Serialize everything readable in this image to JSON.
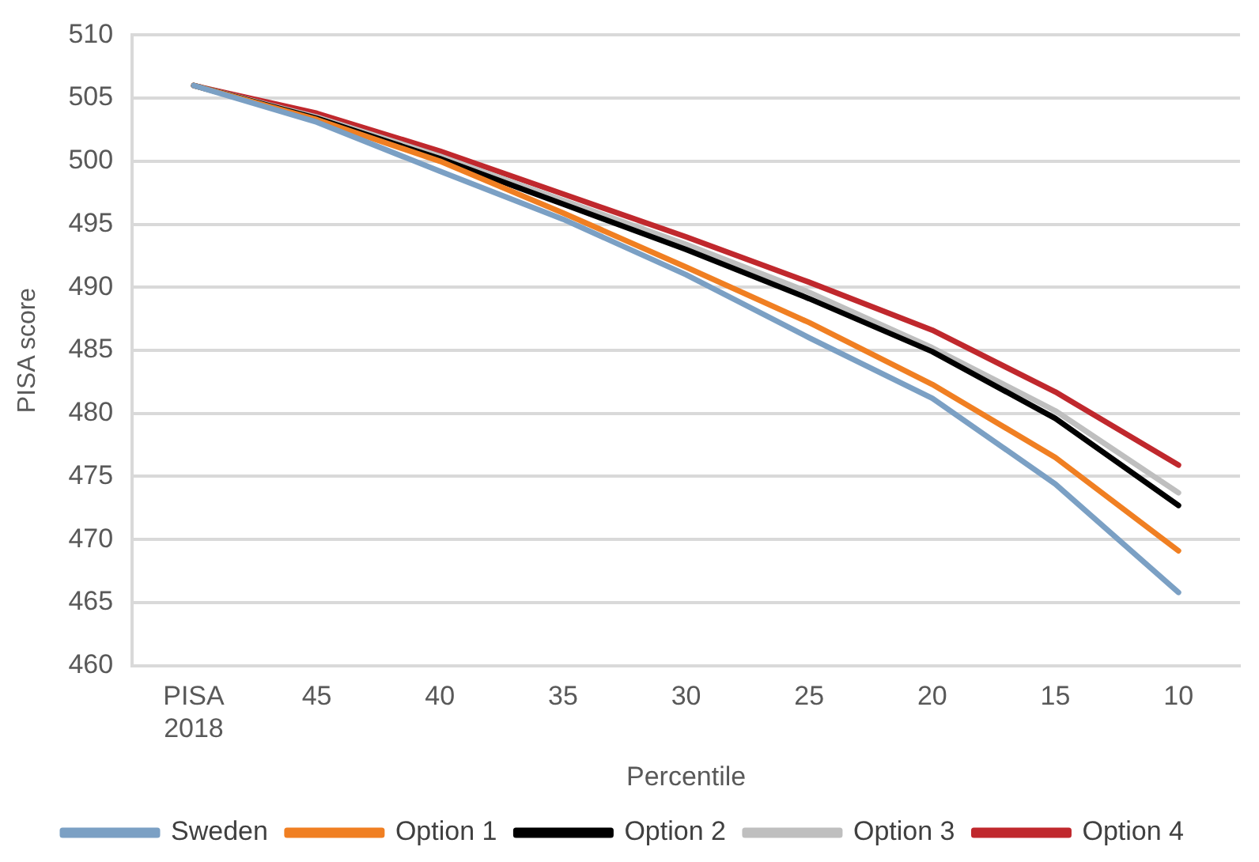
{
  "chart_data": {
    "type": "line",
    "xlabel": "Percentile",
    "ylabel": "PISA score",
    "categories": [
      "PISA 2018",
      "45",
      "40",
      "35",
      "30",
      "25",
      "20",
      "15",
      "10"
    ],
    "series": [
      {
        "name": "Sweden",
        "color": "#7ba0c4",
        "values": [
          506,
          503.1,
          499.2,
          495.4,
          491,
          486,
          481.2,
          474.4,
          465.8
        ]
      },
      {
        "name": "Option 1",
        "color": "#f07f22",
        "values": [
          506,
          503.3,
          500,
          495.9,
          491.6,
          487.2,
          482.3,
          476.5,
          469.1
        ]
      },
      {
        "name": "Option 2",
        "color": "#000000",
        "values": [
          506,
          503.4,
          500.2,
          496.6,
          493,
          489.1,
          484.9,
          479.6,
          472.7
        ]
      },
      {
        "name": "Option 3",
        "color": "#bfbfbf",
        "values": [
          506,
          503.5,
          500.4,
          496.9,
          493.4,
          489.6,
          485.2,
          480.2,
          473.7
        ]
      },
      {
        "name": "Option 4",
        "color": "#c0282d",
        "values": [
          506,
          503.8,
          500.8,
          497.4,
          494,
          490.4,
          486.6,
          481.7,
          475.9
        ]
      }
    ],
    "ylim": [
      460,
      510
    ],
    "yticks": [
      460,
      465,
      470,
      475,
      480,
      485,
      490,
      495,
      500,
      505,
      510
    ],
    "grid": "y",
    "legend": "bottom",
    "marker": "none",
    "line_style": "solid"
  }
}
